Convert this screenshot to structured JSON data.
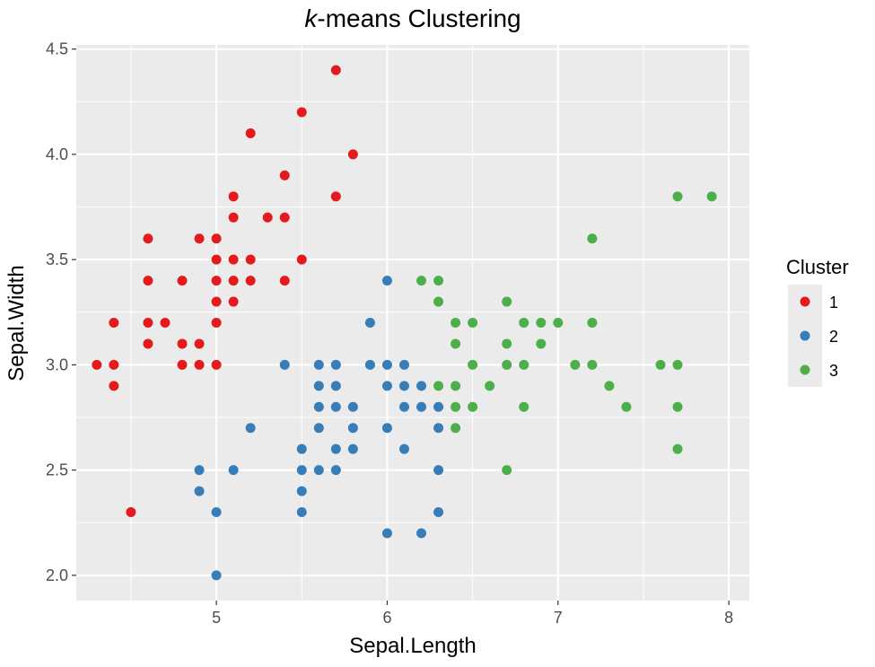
{
  "chart_data": {
    "type": "scatter",
    "title_emph": "k",
    "title_rest": "-means Clustering",
    "xlabel": "Sepal.Length",
    "ylabel": "Sepal.Width",
    "xlim": [
      4.18,
      8.12
    ],
    "ylim": [
      1.88,
      4.52
    ],
    "xticks": [
      5,
      6,
      7,
      8
    ],
    "yticks": [
      2.0,
      2.5,
      3.0,
      3.5,
      4.0,
      4.5
    ],
    "xtick_labels": [
      "5",
      "6",
      "7",
      "8"
    ],
    "ytick_labels": [
      "2.0",
      "2.5",
      "3.0",
      "3.5",
      "4.0",
      "4.5"
    ],
    "grid": true,
    "legend_position": "right",
    "legend": {
      "title": "Cluster",
      "labels": [
        "1",
        "2",
        "3"
      ]
    },
    "colors": [
      "#e41a1c",
      "#377eb8",
      "#4daf4a"
    ],
    "panel_background": "#ebebeb",
    "grid_color": "#ffffff",
    "series": [
      {
        "name": "1",
        "points": [
          [
            5.7,
            4.4
          ],
          [
            5.5,
            4.2
          ],
          [
            5.2,
            4.1
          ],
          [
            5.8,
            4.0
          ],
          [
            5.4,
            3.9
          ],
          [
            5.1,
            3.8
          ],
          [
            5.7,
            3.8
          ],
          [
            5.1,
            3.7
          ],
          [
            5.3,
            3.7
          ],
          [
            5.4,
            3.7
          ],
          [
            4.6,
            3.6
          ],
          [
            4.9,
            3.6
          ],
          [
            5.0,
            3.6
          ],
          [
            5.0,
            3.5
          ],
          [
            5.1,
            3.5
          ],
          [
            5.2,
            3.5
          ],
          [
            5.5,
            3.5
          ],
          [
            4.6,
            3.4
          ],
          [
            4.8,
            3.4
          ],
          [
            5.0,
            3.4
          ],
          [
            5.1,
            3.4
          ],
          [
            5.2,
            3.4
          ],
          [
            5.4,
            3.4
          ],
          [
            5.0,
            3.3
          ],
          [
            5.1,
            3.3
          ],
          [
            4.4,
            3.2
          ],
          [
            4.6,
            3.2
          ],
          [
            4.7,
            3.2
          ],
          [
            5.0,
            3.2
          ],
          [
            4.6,
            3.1
          ],
          [
            4.8,
            3.1
          ],
          [
            4.9,
            3.1
          ],
          [
            4.3,
            3.0
          ],
          [
            4.4,
            3.0
          ],
          [
            4.8,
            3.0
          ],
          [
            4.9,
            3.0
          ],
          [
            5.0,
            3.0
          ],
          [
            4.4,
            2.9
          ],
          [
            4.5,
            2.3
          ]
        ]
      },
      {
        "name": "2",
        "points": [
          [
            6.0,
            3.4
          ],
          [
            5.9,
            3.2
          ],
          [
            5.4,
            3.0
          ],
          [
            5.6,
            3.0
          ],
          [
            5.7,
            3.0
          ],
          [
            5.9,
            3.0
          ],
          [
            6.0,
            3.0
          ],
          [
            6.1,
            3.0
          ],
          [
            5.6,
            2.9
          ],
          [
            5.7,
            2.9
          ],
          [
            6.0,
            2.9
          ],
          [
            6.1,
            2.9
          ],
          [
            6.2,
            2.9
          ],
          [
            5.6,
            2.8
          ],
          [
            5.7,
            2.8
          ],
          [
            5.8,
            2.8
          ],
          [
            6.1,
            2.8
          ],
          [
            6.2,
            2.8
          ],
          [
            6.3,
            2.8
          ],
          [
            5.2,
            2.7
          ],
          [
            5.6,
            2.7
          ],
          [
            5.8,
            2.7
          ],
          [
            6.0,
            2.7
          ],
          [
            6.3,
            2.7
          ],
          [
            5.5,
            2.6
          ],
          [
            5.7,
            2.6
          ],
          [
            5.8,
            2.6
          ],
          [
            6.1,
            2.6
          ],
          [
            4.9,
            2.5
          ],
          [
            5.1,
            2.5
          ],
          [
            5.5,
            2.5
          ],
          [
            5.6,
            2.5
          ],
          [
            5.7,
            2.5
          ],
          [
            6.3,
            2.5
          ],
          [
            4.9,
            2.4
          ],
          [
            5.5,
            2.4
          ],
          [
            5.0,
            2.3
          ],
          [
            5.5,
            2.3
          ],
          [
            6.3,
            2.3
          ],
          [
            6.0,
            2.2
          ],
          [
            6.2,
            2.2
          ],
          [
            5.0,
            2.0
          ]
        ]
      },
      {
        "name": "3",
        "points": [
          [
            7.7,
            3.8
          ],
          [
            7.9,
            3.8
          ],
          [
            7.2,
            3.6
          ],
          [
            6.2,
            3.4
          ],
          [
            6.3,
            3.4
          ],
          [
            6.3,
            3.3
          ],
          [
            6.7,
            3.3
          ],
          [
            6.4,
            3.2
          ],
          [
            6.5,
            3.2
          ],
          [
            6.8,
            3.2
          ],
          [
            6.9,
            3.2
          ],
          [
            7.0,
            3.2
          ],
          [
            7.2,
            3.2
          ],
          [
            6.4,
            3.1
          ],
          [
            6.7,
            3.1
          ],
          [
            6.9,
            3.1
          ],
          [
            6.5,
            3.0
          ],
          [
            6.7,
            3.0
          ],
          [
            6.8,
            3.0
          ],
          [
            7.1,
            3.0
          ],
          [
            7.2,
            3.0
          ],
          [
            7.6,
            3.0
          ],
          [
            7.7,
            3.0
          ],
          [
            6.3,
            2.9
          ],
          [
            6.4,
            2.9
          ],
          [
            6.6,
            2.9
          ],
          [
            7.3,
            2.9
          ],
          [
            6.4,
            2.8
          ],
          [
            6.5,
            2.8
          ],
          [
            6.8,
            2.8
          ],
          [
            7.4,
            2.8
          ],
          [
            7.7,
            2.8
          ],
          [
            6.4,
            2.7
          ],
          [
            7.7,
            2.6
          ],
          [
            6.7,
            2.5
          ]
        ]
      }
    ]
  }
}
